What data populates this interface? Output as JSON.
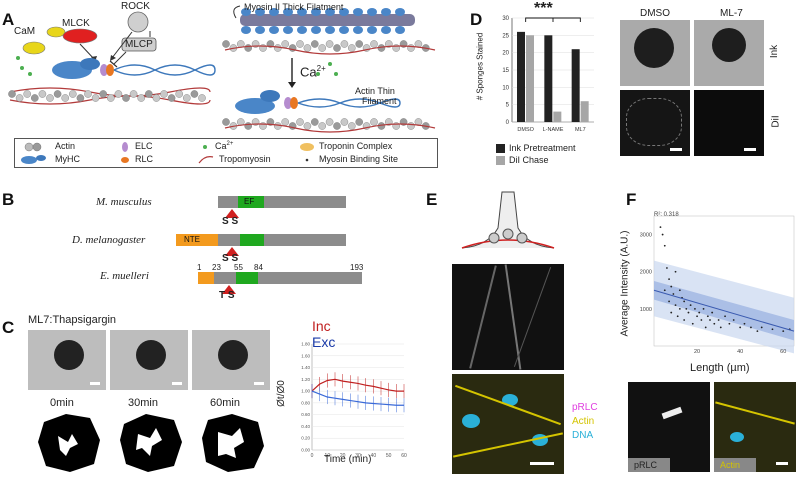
{
  "panels": {
    "A": {
      "label": "A",
      "labels": {
        "cam": "CaM",
        "mlck": "MLCK",
        "rock": "ROCK",
        "mlcp": "MLCP",
        "myosin_title": "Myosin II Thick Filatment",
        "actin_thin_1": "Actin Thin",
        "actin_thin_2": "Filament",
        "calcium": "Ca",
        "calcium_sup": "2+"
      },
      "legend": {
        "actin": "Actin",
        "myhc": "MyHC",
        "elc": "ELC",
        "rlc": "RLC",
        "ca": "Ca",
        "ca_sup": "2+",
        "tropomyosin": "Tropomyosin",
        "troponin": "Troponin Complex",
        "binding_site": "Myosin Binding Site"
      }
    },
    "B": {
      "label": "B",
      "species": [
        "M. musculus",
        "D. melanogaster",
        "E. muelleri"
      ],
      "domain_ef": "EF",
      "domain_nte": "NTE",
      "site_labels_1": "S S",
      "site_labels_2": "S S",
      "site_labels_3": "T S",
      "positions": [
        "1",
        "23",
        "55",
        "84",
        "193"
      ]
    },
    "C": {
      "label": "C",
      "title": "ML7:Thapsigargin",
      "timepoints": [
        "0min",
        "30min",
        "60min"
      ],
      "legend_inc": "Inc",
      "legend_exc": "Exc",
      "xlabel": "Time (min)",
      "ylabel": "Øt/Ø0",
      "yticks": [
        "1.80",
        "1.60",
        "1.40",
        "1.20",
        "1.00",
        "0.80",
        "0.60",
        "0.40",
        "0.20",
        "0.00"
      ],
      "xticks": [
        "0",
        "10",
        "20",
        "30",
        "40",
        "50",
        "60"
      ]
    },
    "D": {
      "label": "D",
      "significance": "***",
      "ylabel": "# Sponges Stained",
      "legend_ink": "Ink Pretreatment",
      "legend_dil": "DiI Chase",
      "col_dmso": "DMSO",
      "col_ml7": "ML-7",
      "row_ink": "Ink",
      "row_dil": "DiI",
      "colors": {
        "ink": "#222222",
        "dil": "#a6a6a6"
      }
    },
    "E": {
      "label": "E",
      "channel_prlc": "pRLC",
      "channel_actin": "Actin",
      "channel_dna": "DNA",
      "colors": {
        "prlc": "#e040e0",
        "actin": "#d4c400",
        "dna": "#2ab0d8"
      }
    },
    "F": {
      "label": "F",
      "ylabel": "Average Intensity (A.U.)",
      "xlabel": "Length (µm)",
      "r2": "R²: 0.318",
      "tag_prlc": "pRLC",
      "tag_actin": "Actin"
    }
  },
  "chart_data": [
    {
      "type": "bar",
      "categories": [
        "DMSO",
        "L-NAME",
        "ML7"
      ],
      "series": [
        {
          "name": "Ink Pretreatment",
          "values": [
            26,
            25,
            21
          ]
        },
        {
          "name": "DiI Chase",
          "values": [
            25,
            3,
            6
          ]
        }
      ],
      "ylabel": "# Sponges Stained",
      "ylim": [
        0,
        30
      ],
      "yticks": [
        0,
        5,
        10,
        15,
        20,
        25,
        30
      ],
      "legend": "bottom"
    },
    {
      "type": "line",
      "xlabel": "Time (min)",
      "ylabel": "Øt/Ø0",
      "xlim": [
        0,
        60
      ],
      "ylim": [
        0,
        1.8
      ],
      "series": [
        {
          "name": "Inc",
          "x": [
            0,
            5,
            10,
            15,
            20,
            25,
            30,
            35,
            40,
            45,
            50,
            55,
            60
          ],
          "values": [
            1.0,
            1.12,
            1.18,
            1.2,
            1.17,
            1.15,
            1.13,
            1.1,
            1.08,
            1.05,
            1.02,
            1.0,
            1.0
          ]
        },
        {
          "name": "Exc",
          "x": [
            0,
            5,
            10,
            15,
            20,
            25,
            30,
            35,
            40,
            45,
            50,
            55,
            60
          ],
          "values": [
            1.0,
            0.95,
            0.9,
            0.88,
            0.86,
            0.84,
            0.82,
            0.8,
            0.79,
            0.78,
            0.77,
            0.76,
            0.76
          ]
        }
      ]
    },
    {
      "type": "scatter",
      "xlabel": "Length (µm)",
      "ylabel": "Average Intensity (A.U.)",
      "xlim": [
        0,
        65
      ],
      "ylim": [
        0,
        3500
      ],
      "xticks": [
        20,
        40,
        60
      ],
      "yticks": [
        1000,
        2000,
        3000
      ],
      "x": [
        3,
        4,
        5,
        5,
        6,
        7,
        7,
        8,
        8,
        9,
        10,
        10,
        11,
        12,
        12,
        13,
        14,
        14,
        15,
        16,
        17,
        18,
        19,
        20,
        21,
        22,
        23,
        24,
        25,
        26,
        27,
        28,
        30,
        31,
        33,
        35,
        37,
        40,
        42,
        45,
        48,
        50,
        55,
        60,
        63
      ],
      "values": [
        3200,
        3000,
        2700,
        1500,
        2100,
        1200,
        1800,
        900,
        1600,
        1400,
        1100,
        2000,
        800,
        1500,
        1000,
        1300,
        700,
        1200,
        1000,
        900,
        1100,
        600,
        1000,
        800,
        900,
        700,
        1000,
        500,
        800,
        700,
        900,
        600,
        700,
        500,
        800,
        600,
        700,
        500,
        600,
        500,
        400,
        500,
        450,
        400,
        450
      ],
      "trend": {
        "x": [
          0,
          65
        ],
        "y": [
          1500,
          400
        ]
      }
    }
  ]
}
